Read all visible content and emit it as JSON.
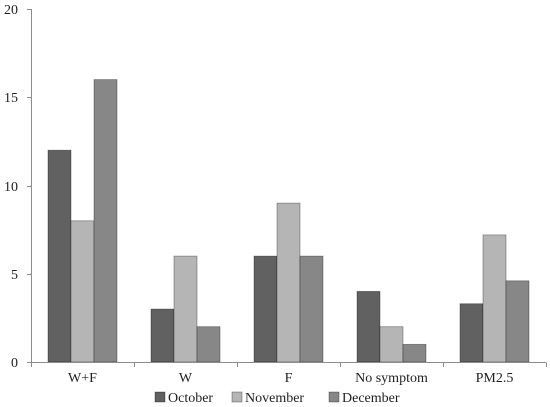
{
  "chart_data": {
    "type": "bar",
    "categories": [
      "W+F",
      "W",
      "F",
      "No symptom",
      "PM2.5"
    ],
    "series": [
      {
        "name": "October",
        "color": "#616161",
        "values": [
          12,
          3,
          6,
          4,
          3.3
        ]
      },
      {
        "name": "November",
        "color": "#b5b5b5",
        "values": [
          8,
          6,
          9,
          2,
          7.2
        ]
      },
      {
        "name": "December",
        "color": "#878787",
        "values": [
          16,
          2,
          6,
          1,
          4.6
        ]
      }
    ],
    "ylim": [
      0,
      20
    ],
    "yticks": [
      0,
      5,
      10,
      15,
      20
    ],
    "grid": false,
    "legend": "bottom"
  }
}
